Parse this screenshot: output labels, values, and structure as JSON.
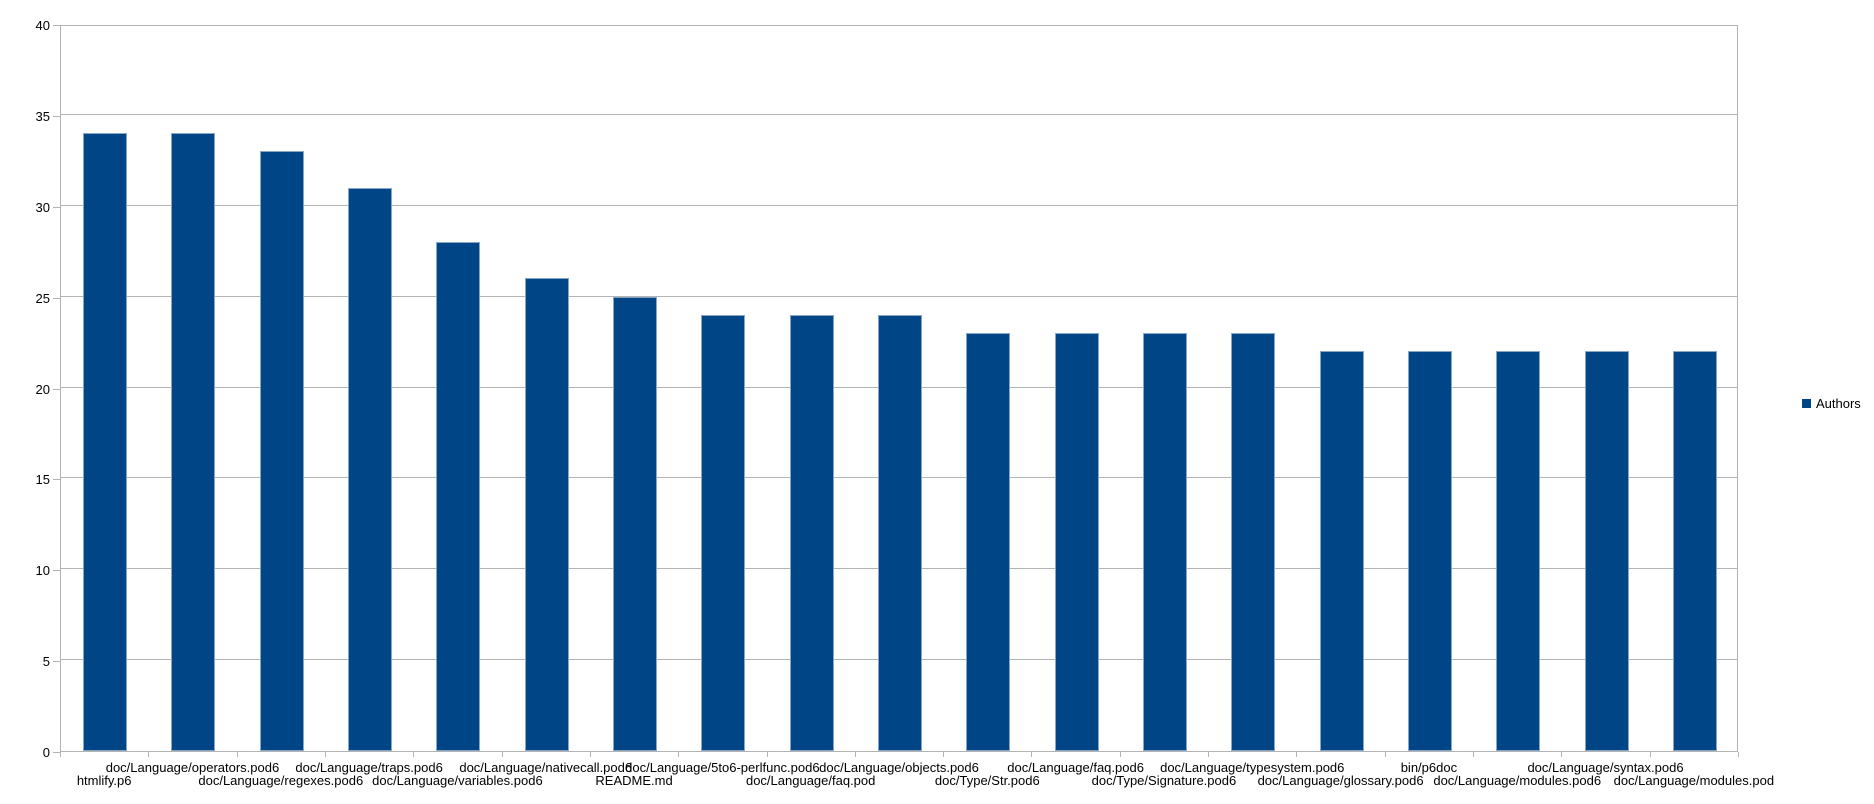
{
  "chart_data": {
    "type": "bar",
    "title": "",
    "xlabel": "",
    "ylabel": "",
    "categories": [
      "htmlify.p6",
      "doc/Language/operators.pod6",
      "doc/Language/regexes.pod6",
      "doc/Language/traps.pod6",
      "doc/Language/variables.pod6",
      "doc/Language/nativecall.pod6",
      "README.md",
      "doc/Language/5to6-perlfunc.pod6",
      "doc/Language/faq.pod",
      "doc/Language/objects.pod6",
      "doc/Type/Str.pod6",
      "doc/Language/faq.pod6",
      "doc/Type/Signature.pod6",
      "doc/Language/typesystem.pod6",
      "doc/Language/glossary.pod6",
      "bin/p6doc",
      "doc/Language/modules.pod6",
      "doc/Language/syntax.pod6",
      "doc/Language/modules.pod"
    ],
    "series": [
      {
        "name": "Authors",
        "values": [
          34,
          34,
          33,
          31,
          28,
          26,
          25,
          24,
          24,
          24,
          23,
          23,
          23,
          23,
          22,
          22,
          22,
          22,
          22
        ]
      }
    ],
    "ylim": [
      0,
      40
    ],
    "yticks": [
      0,
      5,
      10,
      15,
      20,
      25,
      30,
      35,
      40
    ],
    "grid": true,
    "legend_position": "right",
    "label_rows": "staggered-two-rows",
    "colors": {
      "bar": "#004586",
      "bar_border": "#88a6c6",
      "grid": "#b3b3b3",
      "text": "#000000",
      "background": "#ffffff"
    }
  }
}
